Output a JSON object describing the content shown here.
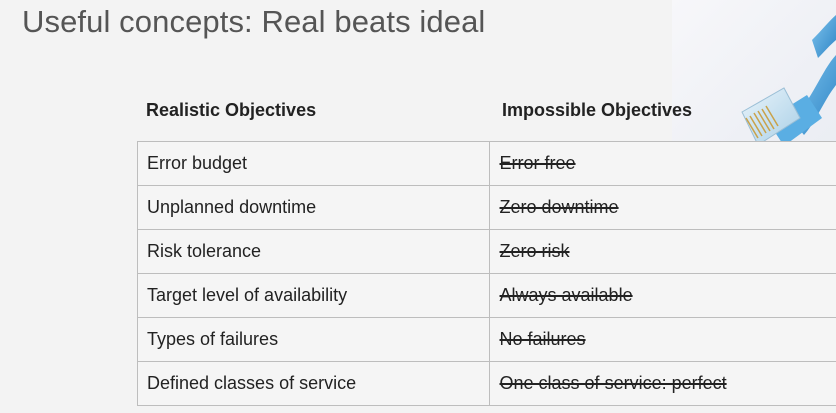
{
  "slide": {
    "title": "Useful concepts: Real beats ideal"
  },
  "table": {
    "headers": [
      "Realistic Objectives",
      "Impossible Objectives"
    ],
    "rows": [
      [
        "Error budget",
        "Error free"
      ],
      [
        "Unplanned downtime",
        "Zero downtime"
      ],
      [
        "Risk tolerance",
        "Zero risk"
      ],
      [
        "Target level of availability",
        "Always available"
      ],
      [
        "Types of failures",
        "No failures"
      ],
      [
        "Defined classes of service",
        "One class of service: perfect"
      ]
    ]
  },
  "image": {
    "icon": "ethernet-cable-icon",
    "accent": "#4fa3d9"
  }
}
